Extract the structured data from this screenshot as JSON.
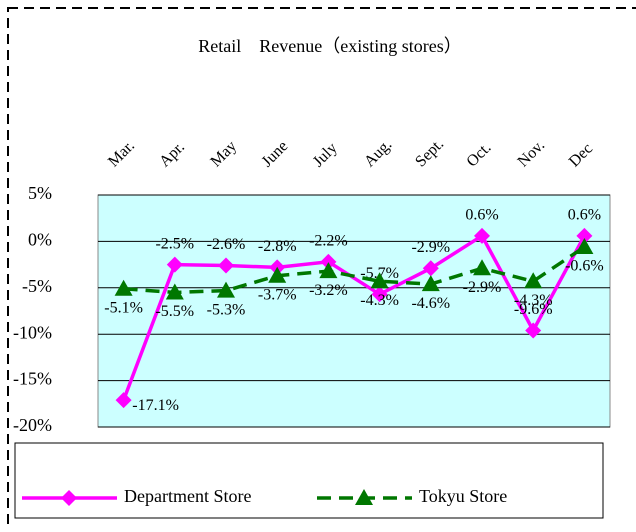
{
  "chart_data": {
    "type": "line",
    "title": "Retail　Revenue（existing stores）",
    "categories": [
      "Mar.",
      "Apr.",
      "May",
      "June",
      "July",
      "Aug.",
      "Sept.",
      "Oct.",
      "Nov.",
      "Dec"
    ],
    "series": [
      {
        "name": "Department Store",
        "color": "#ff00ff",
        "marker": "diamond",
        "values": [
          -17.1,
          -2.5,
          -2.6,
          -2.8,
          -2.2,
          -5.7,
          -2.9,
          0.6,
          -9.6,
          0.6
        ],
        "value_labels": [
          "-17.1%",
          "-2.5%",
          "-2.6%",
          "-2.8%",
          "-2.2%",
          "-5.7%",
          "-2.9%",
          "0.6%",
          "-9.6%",
          "0.6%"
        ]
      },
      {
        "name": "Tokyu Store",
        "color": "#007700",
        "marker": "triangle",
        "dashed": true,
        "values": [
          -5.1,
          -5.5,
          -5.3,
          -3.7,
          -3.2,
          -4.3,
          -4.6,
          -2.9,
          -4.3,
          -0.6
        ],
        "value_labels": [
          "-5.1%",
          "-5.5%",
          "-5.3%",
          "-3.7%",
          "-3.2%",
          "-4.3%",
          "-4.6%",
          "-2.9%",
          "-4.3%",
          "-0.6%"
        ]
      }
    ],
    "ylim": [
      -20,
      5
    ],
    "yticks": [
      {
        "value": -20,
        "label": "-20%"
      },
      {
        "value": -15,
        "label": "-15%"
      },
      {
        "value": -10,
        "label": "-10%"
      },
      {
        "value": -5,
        "label": "-5%"
      },
      {
        "value": 0,
        "label": "0%"
      },
      {
        "value": 5,
        "label": "5%"
      }
    ],
    "grid": true,
    "legend": "bottom",
    "plot_background": "#ccffff"
  }
}
